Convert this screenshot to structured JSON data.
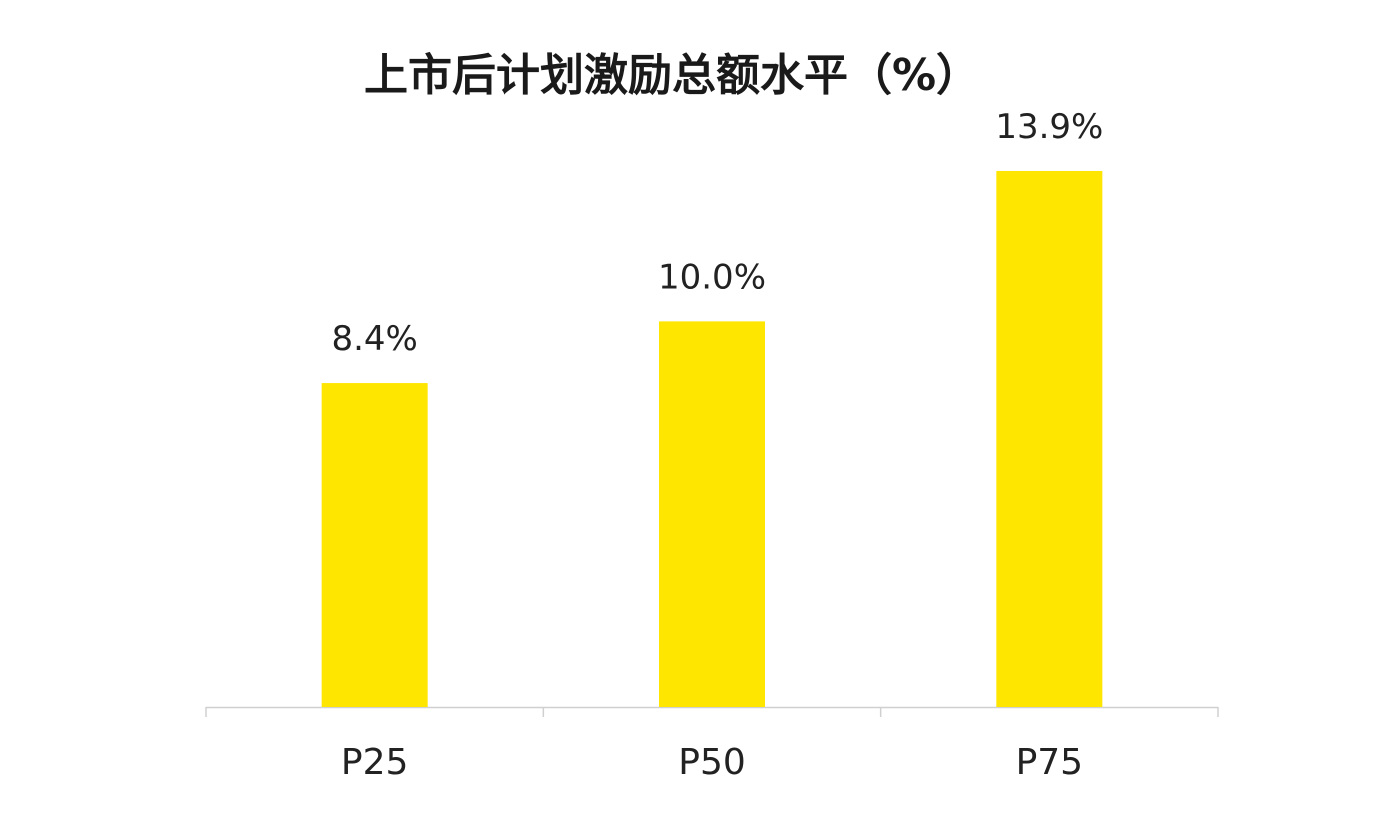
{
  "chart_data": {
    "type": "bar",
    "title": "上市后计划激励总额水平（%）",
    "categories": [
      "P25",
      "P50",
      "P75"
    ],
    "values": [
      8.4,
      10.0,
      13.9
    ],
    "data_labels": [
      "8.4%",
      "10.0%",
      "13.9%"
    ],
    "xlabel": "",
    "ylabel": "",
    "ylim": [
      0,
      16
    ],
    "grid": false,
    "legend": "none",
    "bar_color": "#FFE600",
    "axis_color": "#d0d0d0"
  }
}
